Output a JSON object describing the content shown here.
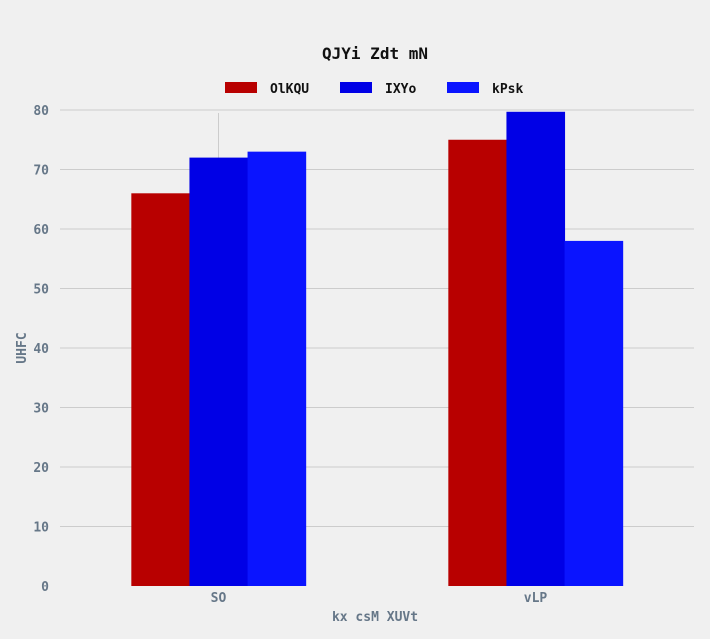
{
  "chart_data": {
    "type": "bar",
    "title": "QJYi Zdt mN",
    "xlabel": "kx  csM XUVt",
    "ylabel": "UHFC",
    "categories": [
      "SO",
      "vLP"
    ],
    "series": [
      {
        "name": "OlKQU",
        "color": "#b80000",
        "values": [
          66,
          75
        ]
      },
      {
        "name": "IXYo",
        "color": "#0000e6",
        "values": [
          72,
          79.7
        ]
      },
      {
        "name": "kPsk",
        "color": "#0a14ff",
        "values": [
          73,
          58
        ]
      }
    ],
    "ylim": [
      0,
      80
    ],
    "yticks": [
      0,
      10,
      20,
      30,
      40,
      50,
      60,
      70,
      80
    ],
    "grid": "horizontal",
    "legend_position": "top-center"
  }
}
